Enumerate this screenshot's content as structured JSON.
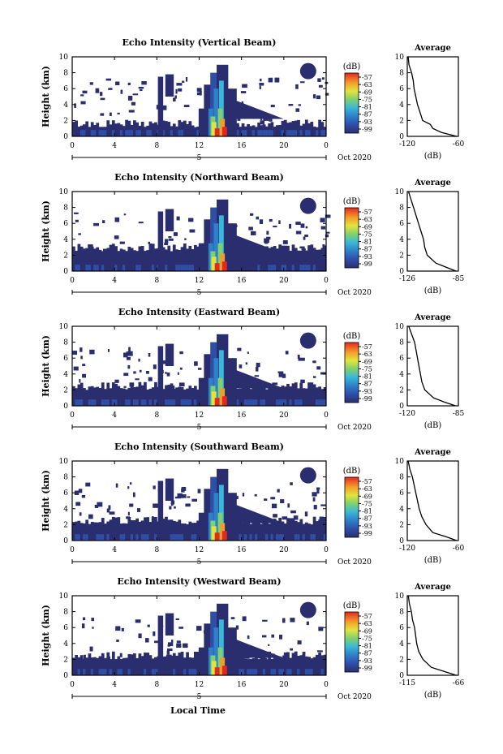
{
  "figure": {
    "xlabel": "Local Time",
    "colorbar_unit": "(dB)",
    "colorbar_ticks": [
      "-57",
      "-63",
      "-69",
      "-75",
      "-81",
      "-87",
      "-93",
      "-99"
    ],
    "x_ticks": [
      "0",
      "4",
      "8",
      "12",
      "16",
      "20",
      "0"
    ],
    "date_marker": "5",
    "date_label": "Oct 2020",
    "avg_title": "Average",
    "avg_xlabel": "(dB)"
  },
  "chart_data": [
    {
      "type": "heatmap",
      "title": "Echo Intensity (Vertical Beam)",
      "ylabel": "Height (km)",
      "xlim": [
        0,
        24
      ],
      "ylim": [
        0,
        10
      ],
      "yticks": [
        "0",
        "2",
        "4",
        "6",
        "8",
        "10"
      ],
      "colorbar": {
        "unit": "(dB)",
        "range": [
          -99,
          -57
        ]
      },
      "average": {
        "title": "Average",
        "xlabel": "(dB)",
        "xticks": [
          "-120",
          "-60"
        ],
        "xlim": [
          -120,
          -60
        ],
        "heights": [
          0,
          0.5,
          1,
          1.5,
          2,
          3,
          4,
          5,
          6,
          7,
          8,
          9,
          10
        ],
        "values": [
          -62,
          -80,
          -90,
          -93,
          -102,
          -105,
          -108,
          -110,
          -112,
          -113,
          -115,
          -118,
          -119
        ]
      }
    },
    {
      "type": "heatmap",
      "title": "Echo Intensity (Northward Beam)",
      "ylabel": "Height (km)",
      "xlim": [
        0,
        24
      ],
      "ylim": [
        0,
        10
      ],
      "yticks": [
        "0",
        "2",
        "4",
        "6",
        "8",
        "10"
      ],
      "colorbar": {
        "unit": "(dB)",
        "range": [
          -99,
          -57
        ]
      },
      "average": {
        "title": "Average",
        "xlabel": "(dB)",
        "xticks": [
          "-126",
          "-85"
        ],
        "xlim": [
          -126,
          -85
        ],
        "heights": [
          0,
          0.5,
          1,
          2,
          3,
          4,
          5,
          6,
          7,
          8,
          9,
          10
        ],
        "values": [
          -87,
          -95,
          -103,
          -110,
          -112,
          -113,
          -115,
          -117,
          -119,
          -121,
          -123,
          -125
        ]
      }
    },
    {
      "type": "heatmap",
      "title": "Echo Intensity (Eastward Beam)",
      "ylabel": "Height (km)",
      "xlim": [
        0,
        24
      ],
      "ylim": [
        0,
        10
      ],
      "yticks": [
        "0",
        "2",
        "4",
        "6",
        "8",
        "10"
      ],
      "colorbar": {
        "unit": "(dB)",
        "range": [
          -99,
          -57
        ]
      },
      "average": {
        "title": "Average",
        "xlabel": "(dB)",
        "xticks": [
          "-120",
          "-85"
        ],
        "xlim": [
          -120,
          -85
        ],
        "heights": [
          0,
          0.5,
          1,
          2,
          3,
          4,
          5,
          6,
          7,
          8,
          9,
          10
        ],
        "values": [
          -87,
          -95,
          -102,
          -108,
          -110,
          -111,
          -112,
          -113,
          -114,
          -115,
          -117,
          -119
        ]
      }
    },
    {
      "type": "heatmap",
      "title": "Echo Intensity (Southward Beam)",
      "ylabel": "Height (km)",
      "xlim": [
        0,
        24
      ],
      "ylim": [
        0,
        10
      ],
      "yticks": [
        "0",
        "2",
        "4",
        "6",
        "8",
        "10"
      ],
      "colorbar": {
        "unit": "(dB)",
        "range": [
          -99,
          -57
        ]
      },
      "average": {
        "title": "Average",
        "xlabel": "(dB)",
        "xticks": [
          "-120",
          "-60"
        ],
        "xlim": [
          -120,
          -60
        ],
        "heights": [
          0,
          0.5,
          1,
          2,
          3,
          4,
          5,
          6,
          7,
          8,
          9,
          10
        ],
        "values": [
          -62,
          -75,
          -90,
          -98,
          -103,
          -106,
          -108,
          -110,
          -112,
          -114,
          -117,
          -119
        ]
      }
    },
    {
      "type": "heatmap",
      "title": "Echo Intensity (Westward Beam)",
      "ylabel": "Height (km)",
      "xlim": [
        0,
        24
      ],
      "ylim": [
        0,
        10
      ],
      "yticks": [
        "0",
        "2",
        "4",
        "6",
        "8",
        "10"
      ],
      "colorbar": {
        "unit": "(dB)",
        "range": [
          -99,
          -57
        ]
      },
      "average": {
        "title": "Average",
        "xlabel": "(dB)",
        "xticks": [
          "-115",
          "-66"
        ],
        "xlim": [
          -115,
          -66
        ],
        "heights": [
          0,
          0.5,
          1,
          2,
          3,
          4,
          5,
          6,
          7,
          8,
          9,
          10
        ],
        "values": [
          -68,
          -80,
          -92,
          -100,
          -104,
          -106,
          -107,
          -108,
          -110,
          -111,
          -113,
          -114
        ]
      }
    }
  ]
}
